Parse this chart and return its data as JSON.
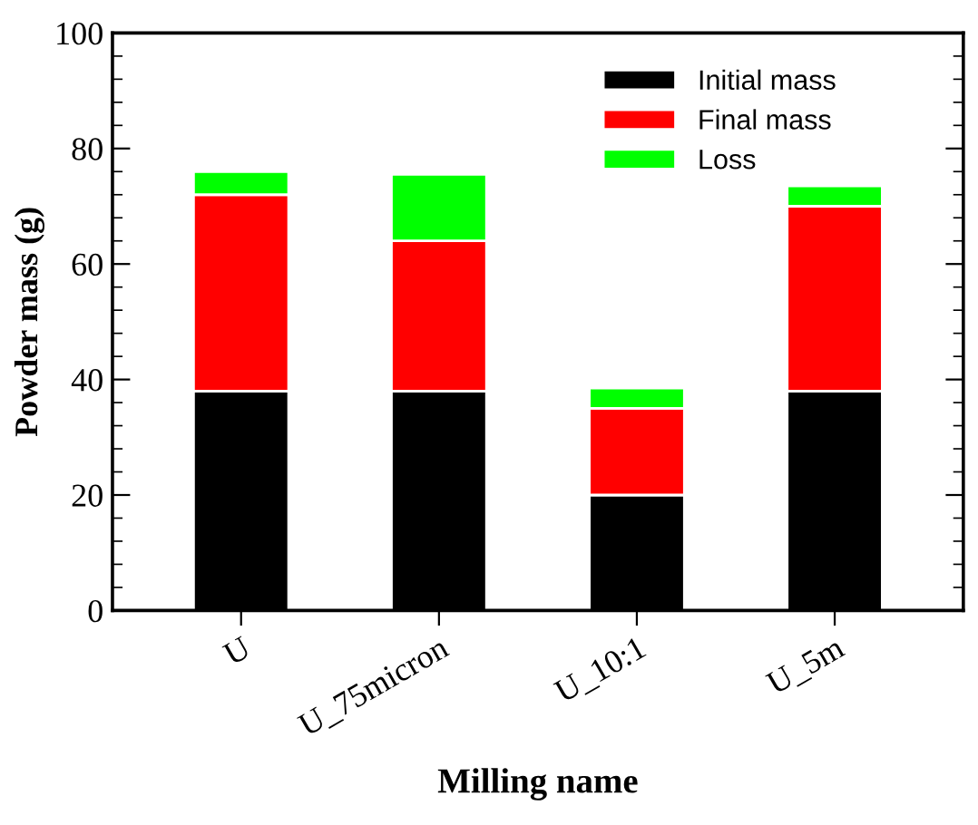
{
  "chart_data": {
    "type": "bar",
    "stacked": true,
    "xlabel": "Milling name",
    "ylabel": "Powder mass (g)",
    "categories": [
      "U",
      "U_75micron",
      "U_10:1",
      "U_5m"
    ],
    "series": [
      {
        "name": "Initial mass",
        "color": "#000000",
        "values": [
          38,
          38,
          20,
          38
        ]
      },
      {
        "name": "Final mass",
        "color": "#ff0000",
        "values": [
          34,
          26,
          15,
          32
        ]
      },
      {
        "name": "Loss",
        "color": "#00ff00",
        "values": [
          4,
          11.5,
          3.5,
          3.5
        ]
      }
    ],
    "ylim": [
      0,
      100
    ],
    "yticks": [
      0,
      20,
      40,
      60,
      80,
      100
    ],
    "grid": false,
    "legend": "top right"
  }
}
